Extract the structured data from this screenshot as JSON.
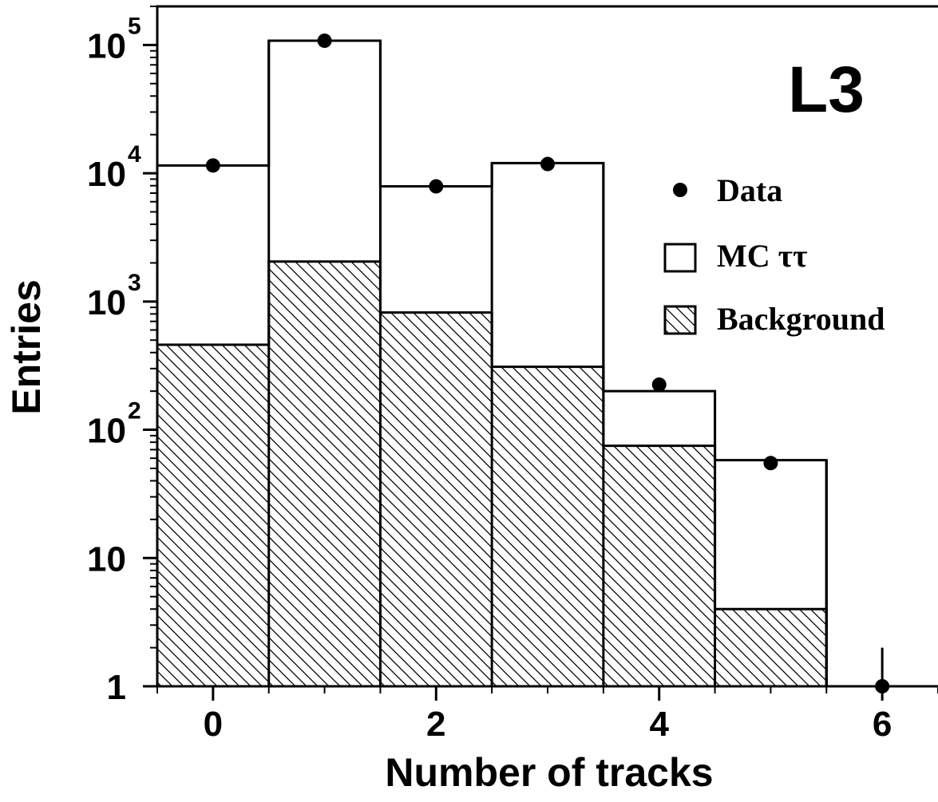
{
  "chart_data": {
    "type": "bar",
    "experiment_label": "L3",
    "xlabel": "Number of tracks",
    "ylabel": "Entries",
    "xlim": [
      -0.5,
      6.5
    ],
    "ylim": [
      1,
      200000
    ],
    "yscale": "log",
    "grid": false,
    "legend_position": "right",
    "x_ticks": [
      {
        "value": 0,
        "label": "0"
      },
      {
        "value": 2,
        "label": "2"
      },
      {
        "value": 4,
        "label": "4"
      },
      {
        "value": 6,
        "label": "6"
      }
    ],
    "y_ticks": [
      {
        "value": 1,
        "base": "1",
        "exp": ""
      },
      {
        "value": 10,
        "base": "10",
        "exp": ""
      },
      {
        "value": 100,
        "base": "10",
        "exp": "2"
      },
      {
        "value": 1000,
        "base": "10",
        "exp": "3"
      },
      {
        "value": 10000,
        "base": "10",
        "exp": "4"
      },
      {
        "value": 100000,
        "base": "10",
        "exp": "5"
      }
    ],
    "categories": [
      0,
      1,
      2,
      3,
      4,
      5,
      6
    ],
    "series": [
      {
        "name": "Data",
        "style": "points",
        "values": [
          11500,
          108000,
          7900,
          11800,
          225,
          55,
          1
        ],
        "errors": [
          0,
          0,
          0,
          0,
          0,
          0,
          1
        ]
      },
      {
        "name": "MC ττ",
        "style": "step",
        "values": [
          11500,
          108000,
          7900,
          12000,
          200,
          58,
          1
        ]
      },
      {
        "name": "Background",
        "style": "hatched-fill",
        "values": [
          460,
          2050,
          820,
          310,
          75,
          4,
          1
        ]
      }
    ]
  }
}
